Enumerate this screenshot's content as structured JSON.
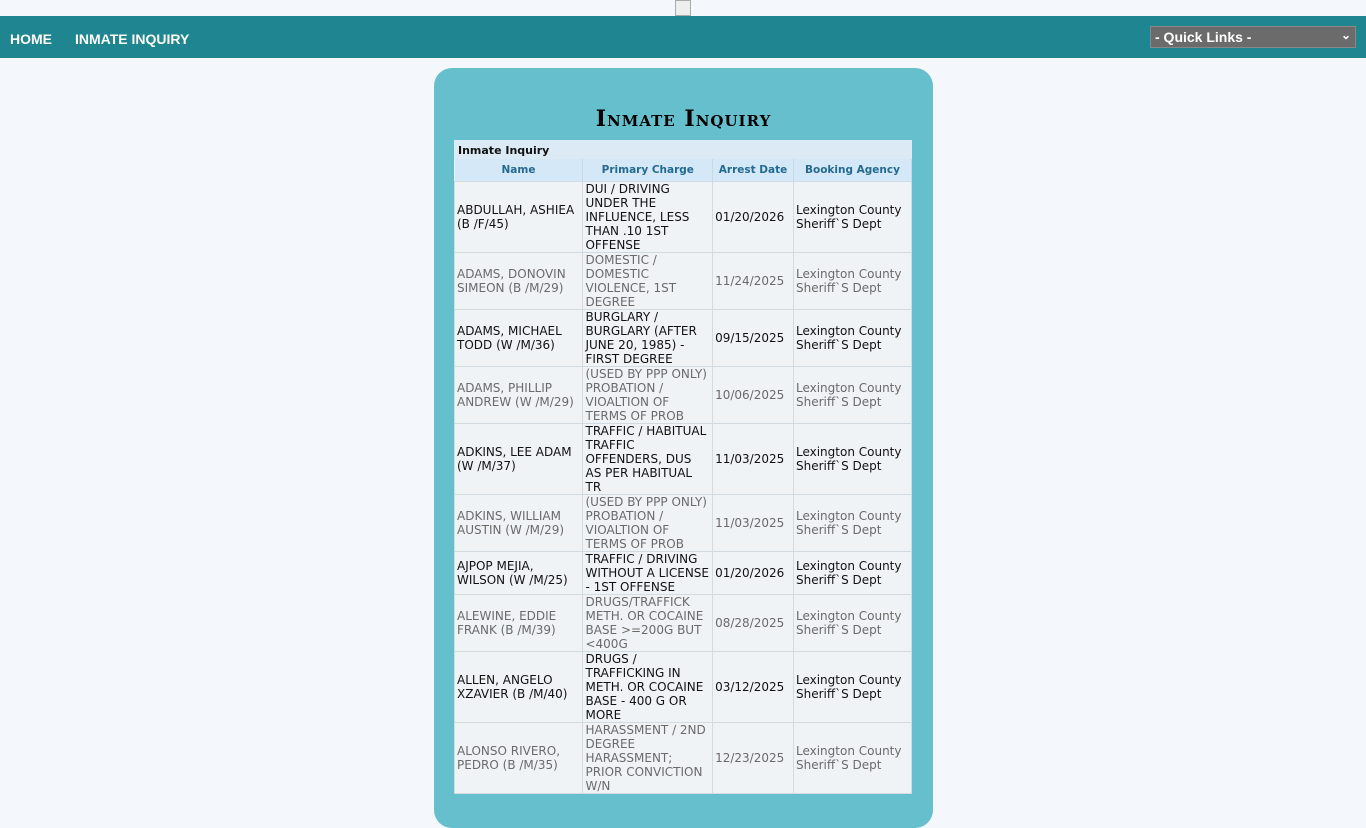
{
  "nav": {
    "home": "HOME",
    "inmate_inquiry": "INMATE INQUIRY",
    "quick_links": "- Quick Links -"
  },
  "page_title": "Inmate Inquiry",
  "table": {
    "caption": "Inmate Inquiry",
    "headers": [
      "Name",
      "Primary Charge",
      "Arrest Date",
      "Booking Agency"
    ],
    "rows": [
      [
        "ABDULLAH, ASHIEA (B /F/45)",
        "DUI / DRIVING UNDER THE INFLUENCE, LESS THAN .10 1ST OFFENSE",
        "01/20/2026",
        "Lexington County Sheriff`S Dept"
      ],
      [
        "ADAMS, DONOVIN SIMEON (B /M/29)",
        "DOMESTIC / DOMESTIC VIOLENCE, 1ST DEGREE",
        "11/24/2025",
        "Lexington County Sheriff`S Dept"
      ],
      [
        "ADAMS, MICHAEL TODD (W /M/36)",
        "BURGLARY / BURGLARY (AFTER JUNE 20, 1985) - FIRST DEGREE",
        "09/15/2025",
        "Lexington County Sheriff`S Dept"
      ],
      [
        "ADAMS, PHILLIP ANDREW (W /M/29)",
        "(USED BY PPP ONLY) PROBATION / VIOALTION OF TERMS OF PROB",
        "10/06/2025",
        "Lexington County Sheriff`S Dept"
      ],
      [
        "ADKINS, LEE ADAM (W /M/37)",
        "TRAFFIC / HABITUAL TRAFFIC OFFENDERS, DUS AS PER HABITUAL TR",
        "11/03/2025",
        "Lexington County Sheriff`S Dept"
      ],
      [
        "ADKINS, WILLIAM AUSTIN (W /M/29)",
        "(USED BY PPP ONLY) PROBATION / VIOALTION OF TERMS OF PROB",
        "11/03/2025",
        "Lexington County Sheriff`S Dept"
      ],
      [
        "AJPOP MEJIA, WILSON (W /M/25)",
        "TRAFFIC / DRIVING WITHOUT A LICENSE - 1ST OFFENSE",
        "01/20/2026",
        "Lexington County Sheriff`S Dept"
      ],
      [
        "ALEWINE, EDDIE FRANK (B /M/39)",
        "DRUGS/TRAFFICK METH. OR COCAINE BASE >=200G BUT <400G",
        "08/28/2025",
        "Lexington County Sheriff`S Dept"
      ],
      [
        "ALLEN, ANGELO XZAVIER (B /M/40)",
        "DRUGS / TRAFFICKING IN METH. OR COCAINE BASE - 400 G OR MORE",
        "03/12/2025",
        "Lexington County Sheriff`S Dept"
      ],
      [
        "ALONSO RIVERO, PEDRO (B /M/35)",
        "HARASSMENT / 2ND DEGREE HARASSMENT; PRIOR CONVICTION W/N",
        "12/23/2025",
        "Lexington County Sheriff`S Dept"
      ]
    ]
  }
}
